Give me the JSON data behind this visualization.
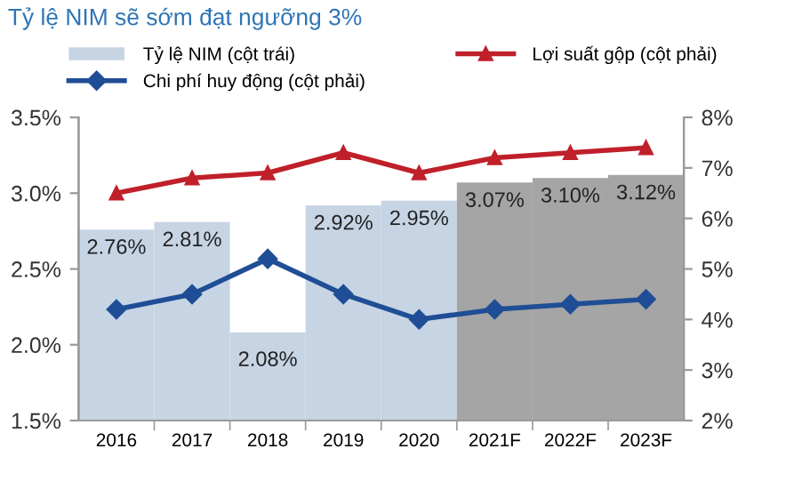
{
  "chart_data": {
    "type": "bar",
    "title": "Tỷ lệ NIM sẽ sớm đạt ngưỡng 3%",
    "categories": [
      "2016",
      "2017",
      "2018",
      "2019",
      "2020",
      "2021F",
      "2022F",
      "2023F"
    ],
    "series": [
      {
        "name": "Tỷ lệ NIM (cột trái)",
        "colors": [
          "#c6d4e4",
          "#c6d4e4",
          "#c6d4e4",
          "#c6d4e4",
          "#c6d4e4",
          "#a5a5a5",
          "#a5a5a5",
          "#a5a5a5"
        ],
        "values": [
          2.76,
          2.81,
          2.08,
          2.92,
          2.95,
          3.07,
          3.1,
          3.12
        ],
        "value_labels": [
          "2.76%",
          "2.81%",
          "2.08%",
          "2.92%",
          "2.95%",
          "3.07%",
          "3.10%",
          "3.12%"
        ]
      },
      {
        "name": "Lợi suất gộp (cột phải)",
        "type": "line",
        "axis": "y2",
        "color": "#c0202a",
        "marker": "triangle",
        "values": [
          6.5,
          6.8,
          6.9,
          7.3,
          6.9,
          7.2,
          7.3,
          7.4
        ]
      },
      {
        "name": "Chi phí huy động (cột phải)",
        "type": "line",
        "axis": "y2",
        "color": "#1f4e96",
        "marker": "diamond",
        "values": [
          4.2,
          4.5,
          5.2,
          4.5,
          4.0,
          4.2,
          4.3,
          4.4
        ]
      }
    ],
    "ylim": [
      1.5,
      3.5
    ],
    "yticks": [
      {
        "value": 1.5,
        "label": "1.5%"
      },
      {
        "value": 2.0,
        "label": "2.0%"
      },
      {
        "value": 2.5,
        "label": "2.5%"
      },
      {
        "value": 3.0,
        "label": "3.0%"
      },
      {
        "value": 3.5,
        "label": "3.5%"
      }
    ],
    "y2lim": [
      2,
      8
    ],
    "y2ticks": [
      {
        "value": 2,
        "label": "2%"
      },
      {
        "value": 3,
        "label": "3%"
      },
      {
        "value": 4,
        "label": "4%"
      },
      {
        "value": 5,
        "label": "5%"
      },
      {
        "value": 6,
        "label": "6%"
      },
      {
        "value": 7,
        "label": "7%"
      },
      {
        "value": 8,
        "label": "8%"
      }
    ],
    "grid": false,
    "legend": "top"
  }
}
